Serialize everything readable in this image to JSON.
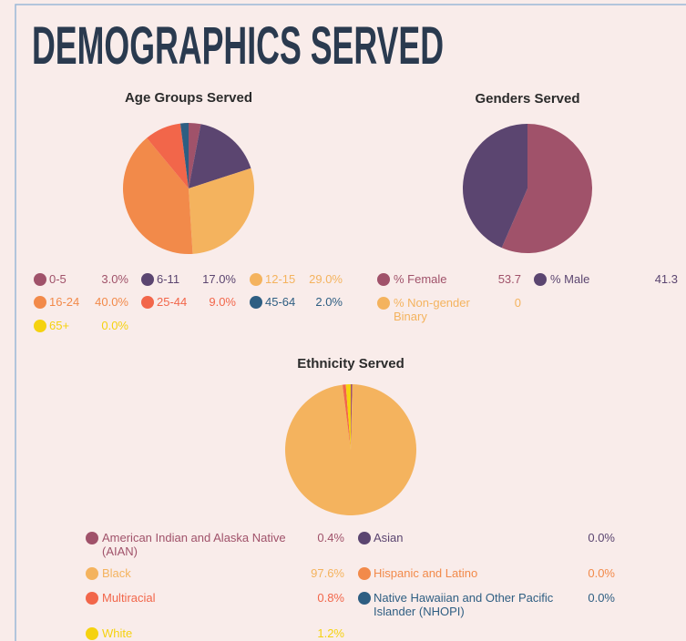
{
  "header": {
    "title": "DEMOGRAPHICS SERVED"
  },
  "chart_data": [
    {
      "type": "pie",
      "title": "Age Groups Served",
      "categories": [
        "0-5",
        "6-11",
        "12-15",
        "16-24",
        "25-44",
        "45-64",
        "65+"
      ],
      "values": [
        3.0,
        17.0,
        29.0,
        40.0,
        9.0,
        2.0,
        0.0
      ],
      "value_labels": [
        "3.0%",
        "17.0%",
        "29.0%",
        "40.0%",
        "9.0%",
        "2.0%",
        "0.0%"
      ],
      "colors": [
        "#a0526a",
        "#5b4570",
        "#f4b35e",
        "#f28a4a",
        "#f2664a",
        "#2e5e82",
        "#f5d20f"
      ]
    },
    {
      "type": "pie",
      "title": "Genders Served",
      "categories": [
        "% Female",
        "% Male",
        "% Non-gender Binary"
      ],
      "values": [
        53.7,
        41.3,
        0
      ],
      "colors": [
        "#a0526a",
        "#5b4570",
        "#f4b35e"
      ]
    },
    {
      "type": "pie",
      "title": "Ethnicity Served",
      "categories": [
        "American Indian and Alaska Native (AIAN)",
        "Asian",
        "Black",
        "Hispanic and Latino",
        "Multiracial",
        "Native Hawaiian and Other Pacific Islander (NHOPI)",
        "White"
      ],
      "values": [
        0.4,
        0.0,
        97.6,
        0.0,
        0.8,
        0.0,
        1.2
      ],
      "value_labels": [
        "0.4%",
        "0.0%",
        "97.6%",
        "0.0%",
        "0.8%",
        "0.0%",
        "1.2%"
      ],
      "colors": [
        "#a0526a",
        "#5b4570",
        "#f4b35e",
        "#f28a4a",
        "#f2664a",
        "#2e5e82",
        "#f5d20f"
      ]
    }
  ]
}
